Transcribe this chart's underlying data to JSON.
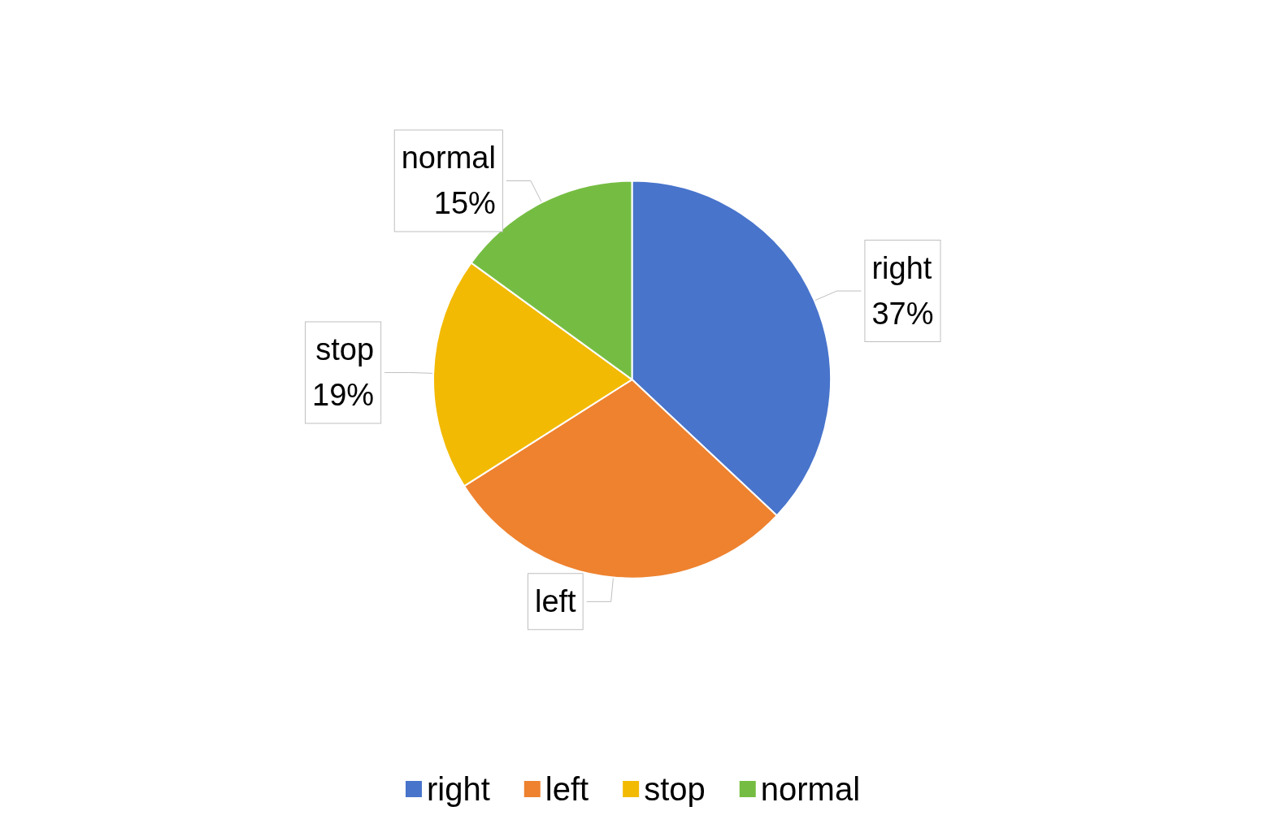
{
  "chart_data": {
    "type": "pie",
    "categories": [
      "right",
      "left",
      "stop",
      "normal"
    ],
    "values": [
      37,
      29,
      19,
      15
    ],
    "value_labels": [
      "37%",
      null,
      "19%",
      "15%"
    ],
    "colors": [
      "#4874cb",
      "#ee822f",
      "#f2ba02",
      "#75bd42"
    ],
    "legend": "bottom"
  }
}
